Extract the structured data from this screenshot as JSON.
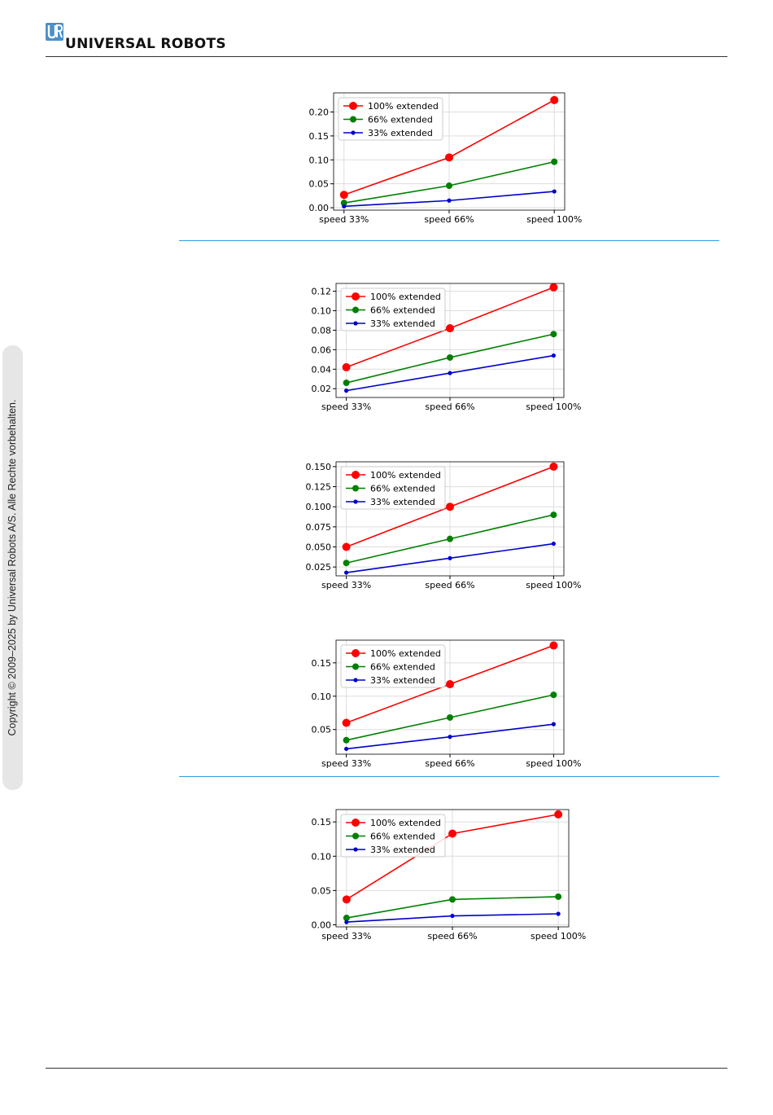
{
  "header": {
    "logo_letters": "UR",
    "brand": "UNIVERSAL ROBOTS",
    "brand_color": "#4a90c8"
  },
  "sidebar": {
    "copyright": "Copyright © 2009–2025 by Universal Robots A/S. Alle Rechte vorbehalten."
  },
  "colors": {
    "series_100": "#ff0000",
    "series_66": "#008000",
    "series_33": "#0000cc",
    "separator": "#2e9be0",
    "grid": "#dddddd"
  },
  "chart_data": [
    {
      "type": "line",
      "x": [
        "speed 33%",
        "speed 66%",
        "speed 100%"
      ],
      "ylim": [
        -0.005,
        0.24
      ],
      "yticks": [
        "0.00",
        "0.05",
        "0.10",
        "0.15",
        "0.20"
      ],
      "ytick_values": [
        0,
        0.05,
        0.1,
        0.15,
        0.2
      ],
      "legend": "top-left",
      "grid": true,
      "series": [
        {
          "name": "100% extended",
          "values": [
            0.027,
            0.105,
            0.225
          ]
        },
        {
          "name": "66% extended",
          "values": [
            0.01,
            0.046,
            0.096
          ]
        },
        {
          "name": "33% extended",
          "values": [
            0.003,
            0.015,
            0.034
          ]
        }
      ]
    },
    {
      "type": "line",
      "x": [
        "speed 33%",
        "speed 66%",
        "speed 100%"
      ],
      "ylim": [
        0.011,
        0.128
      ],
      "yticks": [
        "0.02",
        "0.04",
        "0.06",
        "0.08",
        "0.10",
        "0.12"
      ],
      "ytick_values": [
        0.02,
        0.04,
        0.06,
        0.08,
        0.1,
        0.12
      ],
      "legend": "top-left",
      "grid": true,
      "series": [
        {
          "name": "100% extended",
          "values": [
            0.042,
            0.082,
            0.124
          ]
        },
        {
          "name": "66% extended",
          "values": [
            0.026,
            0.052,
            0.076
          ]
        },
        {
          "name": "33% extended",
          "values": [
            0.018,
            0.036,
            0.054
          ]
        }
      ]
    },
    {
      "type": "line",
      "x": [
        "speed 33%",
        "speed 66%",
        "speed 100%"
      ],
      "ylim": [
        0.014,
        0.156
      ],
      "yticks": [
        "0.025",
        "0.050",
        "0.075",
        "0.100",
        "0.125",
        "0.150"
      ],
      "ytick_values": [
        0.025,
        0.05,
        0.075,
        0.1,
        0.125,
        0.15
      ],
      "legend": "top-left",
      "grid": true,
      "series": [
        {
          "name": "100% extended",
          "values": [
            0.05,
            0.1,
            0.15
          ]
        },
        {
          "name": "66% extended",
          "values": [
            0.03,
            0.06,
            0.09
          ]
        },
        {
          "name": "33% extended",
          "values": [
            0.018,
            0.036,
            0.054
          ]
        }
      ]
    },
    {
      "type": "line",
      "x": [
        "speed 33%",
        "speed 66%",
        "speed 100%"
      ],
      "ylim": [
        0.013,
        0.184
      ],
      "yticks": [
        "0.05",
        "0.10",
        "0.15"
      ],
      "ytick_values": [
        0.05,
        0.1,
        0.15
      ],
      "legend": "top-left",
      "grid": true,
      "series": [
        {
          "name": "100% extended",
          "values": [
            0.06,
            0.118,
            0.176
          ]
        },
        {
          "name": "66% extended",
          "values": [
            0.034,
            0.068,
            0.102
          ]
        },
        {
          "name": "33% extended",
          "values": [
            0.021,
            0.039,
            0.058
          ]
        }
      ]
    },
    {
      "type": "line",
      "x": [
        "speed 33%",
        "speed 66%",
        "speed 100%"
      ],
      "ylim": [
        -0.003,
        0.168
      ],
      "yticks": [
        "0.00",
        "0.05",
        "0.10",
        "0.15"
      ],
      "ytick_values": [
        0,
        0.05,
        0.1,
        0.15
      ],
      "legend": "top-left",
      "grid": true,
      "series": [
        {
          "name": "100% extended",
          "values": [
            0.037,
            0.133,
            0.161
          ]
        },
        {
          "name": "66% extended",
          "values": [
            0.01,
            0.037,
            0.041
          ]
        },
        {
          "name": "33% extended",
          "values": [
            0.004,
            0.013,
            0.016
          ]
        }
      ]
    }
  ]
}
